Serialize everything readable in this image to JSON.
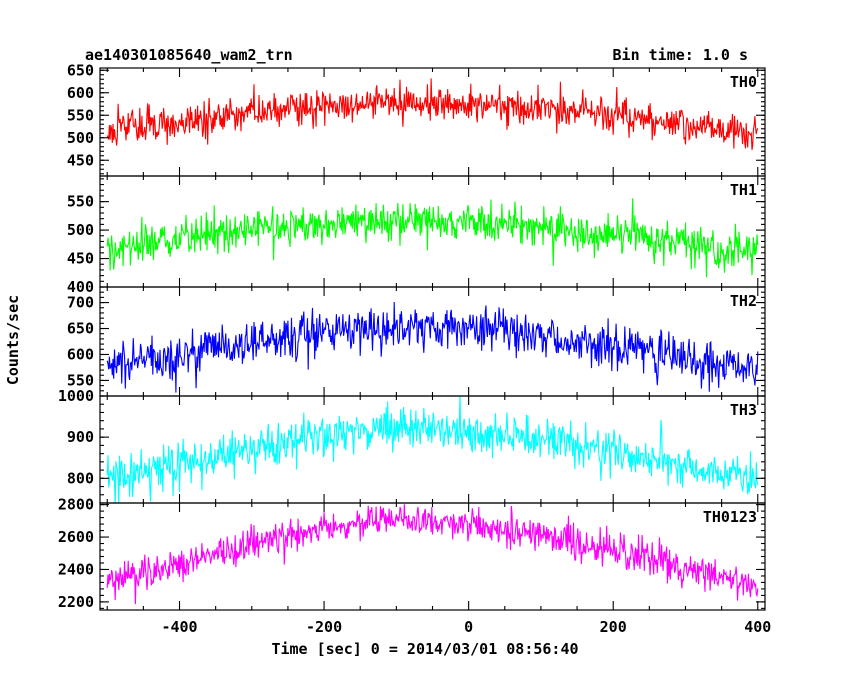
{
  "chart_data": {
    "type": "line",
    "title": "ae140301085640_wam2_trn",
    "subtitle": "Bin time: 1.0 s",
    "xlabel": "Time [sec] 0 = 2014/03/01 08:56:40",
    "ylabel": "Counts/sec",
    "xlim": [
      -510,
      410
    ],
    "x_ticks": [
      -400,
      -200,
      0,
      200,
      400
    ],
    "bin_time_s": 1.0,
    "grid": false,
    "panels": [
      {
        "name": "TH0",
        "color": "#ff0000",
        "ylim": [
          415,
          655
        ],
        "y_ticks": [
          450,
          500,
          550,
          600,
          650
        ],
        "trend_x": [
          -500,
          -400,
          -300,
          -200,
          -100,
          0,
          100,
          200,
          300,
          400
        ],
        "trend_y": [
          520,
          535,
          555,
          570,
          578,
          575,
          565,
          550,
          530,
          505
        ],
        "noise_amplitude": 35
      },
      {
        "name": "TH1",
        "color": "#00ff00",
        "ylim": [
          400,
          595
        ],
        "y_ticks": [
          400,
          450,
          500,
          550
        ],
        "trend_x": [
          -500,
          -400,
          -300,
          -200,
          -100,
          0,
          100,
          200,
          300,
          400
        ],
        "trend_y": [
          470,
          485,
          500,
          512,
          518,
          515,
          505,
          492,
          478,
          462
        ],
        "noise_amplitude": 32
      },
      {
        "name": "TH2",
        "color": "#0000ff",
        "ylim": [
          520,
          730
        ],
        "y_ticks": [
          550,
          600,
          650,
          700
        ],
        "trend_x": [
          -500,
          -400,
          -300,
          -200,
          -100,
          0,
          100,
          200,
          300,
          400
        ],
        "trend_y": [
          575,
          595,
          620,
          645,
          655,
          650,
          635,
          615,
          592,
          570
        ],
        "noise_amplitude": 38
      },
      {
        "name": "TH3",
        "color": "#00ffff",
        "ylim": [
          740,
          1000
        ],
        "y_ticks": [
          800,
          900,
          1000
        ],
        "trend_x": [
          -500,
          -400,
          -300,
          -200,
          -100,
          0,
          100,
          200,
          300,
          400
        ],
        "trend_y": [
          800,
          830,
          870,
          905,
          922,
          915,
          895,
          865,
          830,
          795
        ],
        "noise_amplitude": 45
      },
      {
        "name": "TH0123",
        "color": "#ff00ff",
        "ylim": [
          2150,
          2810
        ],
        "y_ticks": [
          2200,
          2400,
          2600,
          2800
        ],
        "trend_x": [
          -500,
          -400,
          -300,
          -200,
          -100,
          0,
          100,
          200,
          300,
          400
        ],
        "trend_y": [
          2330,
          2430,
          2560,
          2660,
          2700,
          2680,
          2610,
          2520,
          2410,
          2290
        ],
        "noise_amplitude": 95
      }
    ]
  }
}
